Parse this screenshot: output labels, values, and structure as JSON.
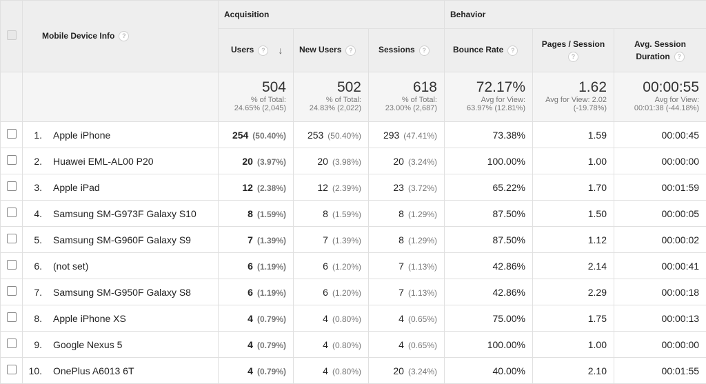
{
  "header": {
    "dimension": "Mobile Device Info",
    "group_acquisition": "Acquisition",
    "group_behavior": "Behavior",
    "col_users": "Users",
    "col_new_users": "New Users",
    "col_sessions": "Sessions",
    "col_bounce_rate": "Bounce Rate",
    "col_pages_line1": "Pages / Session",
    "col_duration_line1": "Avg. Session",
    "col_duration_line2": "Duration",
    "help_glyph": "?",
    "sort_glyph": "↓"
  },
  "totals": {
    "users": "504",
    "users_sub1": "% of Total:",
    "users_sub2": "24.65% (2,045)",
    "new_users": "502",
    "new_users_sub1": "% of Total:",
    "new_users_sub2": "24.83% (2,022)",
    "sessions": "618",
    "sessions_sub1": "% of Total:",
    "sessions_sub2": "23.00% (2,687)",
    "bounce": "72.17%",
    "bounce_sub1": "Avg for View:",
    "bounce_sub2": "63.97% (12.81%)",
    "pages": "1.62",
    "pages_sub1": "Avg for View: 2.02",
    "pages_sub2": "(-19.78%)",
    "duration": "00:00:55",
    "duration_sub1": "Avg for View:",
    "duration_sub2": "00:01:38 (-44.18%)"
  },
  "rows": [
    {
      "idx": "1.",
      "device": "Apple iPhone",
      "users": "254",
      "users_pct": "(50.40%)",
      "new_users": "253",
      "new_users_pct": "(50.40%)",
      "sessions": "293",
      "sessions_pct": "(47.41%)",
      "bounce": "73.38%",
      "pages": "1.59",
      "duration": "00:00:45"
    },
    {
      "idx": "2.",
      "device": "Huawei EML-AL00 P20",
      "users": "20",
      "users_pct": "(3.97%)",
      "new_users": "20",
      "new_users_pct": "(3.98%)",
      "sessions": "20",
      "sessions_pct": "(3.24%)",
      "bounce": "100.00%",
      "pages": "1.00",
      "duration": "00:00:00"
    },
    {
      "idx": "3.",
      "device": "Apple iPad",
      "users": "12",
      "users_pct": "(2.38%)",
      "new_users": "12",
      "new_users_pct": "(2.39%)",
      "sessions": "23",
      "sessions_pct": "(3.72%)",
      "bounce": "65.22%",
      "pages": "1.70",
      "duration": "00:01:59"
    },
    {
      "idx": "4.",
      "device": "Samsung SM-G973F Galaxy S10",
      "users": "8",
      "users_pct": "(1.59%)",
      "new_users": "8",
      "new_users_pct": "(1.59%)",
      "sessions": "8",
      "sessions_pct": "(1.29%)",
      "bounce": "87.50%",
      "pages": "1.50",
      "duration": "00:00:05"
    },
    {
      "idx": "5.",
      "device": "Samsung SM-G960F Galaxy S9",
      "users": "7",
      "users_pct": "(1.39%)",
      "new_users": "7",
      "new_users_pct": "(1.39%)",
      "sessions": "8",
      "sessions_pct": "(1.29%)",
      "bounce": "87.50%",
      "pages": "1.12",
      "duration": "00:00:02"
    },
    {
      "idx": "6.",
      "device": "(not set)",
      "users": "6",
      "users_pct": "(1.19%)",
      "new_users": "6",
      "new_users_pct": "(1.20%)",
      "sessions": "7",
      "sessions_pct": "(1.13%)",
      "bounce": "42.86%",
      "pages": "2.14",
      "duration": "00:00:41"
    },
    {
      "idx": "7.",
      "device": "Samsung SM-G950F Galaxy S8",
      "users": "6",
      "users_pct": "(1.19%)",
      "new_users": "6",
      "new_users_pct": "(1.20%)",
      "sessions": "7",
      "sessions_pct": "(1.13%)",
      "bounce": "42.86%",
      "pages": "2.29",
      "duration": "00:00:18"
    },
    {
      "idx": "8.",
      "device": "Apple iPhone XS",
      "users": "4",
      "users_pct": "(0.79%)",
      "new_users": "4",
      "new_users_pct": "(0.80%)",
      "sessions": "4",
      "sessions_pct": "(0.65%)",
      "bounce": "75.00%",
      "pages": "1.75",
      "duration": "00:00:13"
    },
    {
      "idx": "9.",
      "device": "Google Nexus 5",
      "users": "4",
      "users_pct": "(0.79%)",
      "new_users": "4",
      "new_users_pct": "(0.80%)",
      "sessions": "4",
      "sessions_pct": "(0.65%)",
      "bounce": "100.00%",
      "pages": "1.00",
      "duration": "00:00:00"
    },
    {
      "idx": "10.",
      "device": "OnePlus A6013 6T",
      "users": "4",
      "users_pct": "(0.79%)",
      "new_users": "4",
      "new_users_pct": "(0.80%)",
      "sessions": "20",
      "sessions_pct": "(3.24%)",
      "bounce": "40.00%",
      "pages": "2.10",
      "duration": "00:01:55"
    }
  ]
}
